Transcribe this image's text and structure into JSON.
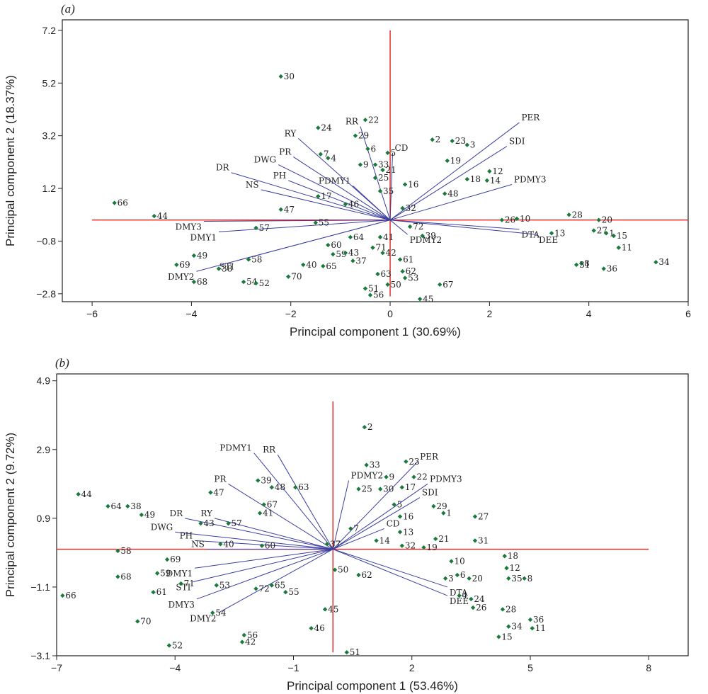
{
  "chart_data": [
    {
      "type": "scatter",
      "panel_label": "(a)",
      "xlabel": "Principal component 1 (30.69%)",
      "ylabel": "Principal component 2 (18.37%)",
      "xlim": [
        -6.6,
        6.0
      ],
      "ylim": [
        -3.1,
        7.6
      ],
      "xticks": [
        -6,
        -4,
        -2,
        0,
        2,
        4,
        6
      ],
      "yticks": [
        -2.8,
        -0.8,
        1.2,
        3.2,
        5.2,
        7.2
      ],
      "reference_lines": {
        "color": "#e02020",
        "x_span": [
          -6.0,
          6.0
        ],
        "y_span": [
          -2.9,
          7.2
        ]
      },
      "marker_color": "#1a7a3a",
      "vector_color": "#3a3fa0",
      "points": [
        {
          "label": "66",
          "x": -5.55,
          "y": 0.65
        },
        {
          "label": "44",
          "x": -4.75,
          "y": 0.15
        },
        {
          "label": "69",
          "x": -4.3,
          "y": -1.7
        },
        {
          "label": "49",
          "x": -3.95,
          "y": -1.35
        },
        {
          "label": "68",
          "x": -3.95,
          "y": -2.35
        },
        {
          "label": "38",
          "x": -3.45,
          "y": -1.85
        },
        {
          "label": "54",
          "x": -2.95,
          "y": -2.35
        },
        {
          "label": "52",
          "x": -2.7,
          "y": -2.4
        },
        {
          "label": "58",
          "x": -2.85,
          "y": -1.5
        },
        {
          "label": "57",
          "x": -2.7,
          "y": -0.3
        },
        {
          "label": "47",
          "x": -2.2,
          "y": 0.4
        },
        {
          "label": "30",
          "x": -2.2,
          "y": 5.45
        },
        {
          "label": "70",
          "x": -2.05,
          "y": -2.15
        },
        {
          "label": "40",
          "x": -1.75,
          "y": -1.7
        },
        {
          "label": "65",
          "x": -1.35,
          "y": -1.75
        },
        {
          "label": "59",
          "x": -1.15,
          "y": -1.3
        },
        {
          "label": "60",
          "x": -1.25,
          "y": -0.95
        },
        {
          "label": "43",
          "x": -0.9,
          "y": -1.25
        },
        {
          "label": "37",
          "x": -0.75,
          "y": -1.55
        },
        {
          "label": "55",
          "x": -1.5,
          "y": -0.1
        },
        {
          "label": "64",
          "x": -0.8,
          "y": -0.65
        },
        {
          "label": "17",
          "x": -1.45,
          "y": 0.9
        },
        {
          "label": "46",
          "x": -0.9,
          "y": 0.6
        },
        {
          "label": "24",
          "x": -1.45,
          "y": 3.5
        },
        {
          "label": "7",
          "x": -1.4,
          "y": 2.5
        },
        {
          "label": "4",
          "x": -1.25,
          "y": 2.35
        },
        {
          "label": "22",
          "x": -0.5,
          "y": 3.8
        },
        {
          "label": "29",
          "x": -0.7,
          "y": 3.2
        },
        {
          "label": "6",
          "x": -0.45,
          "y": 2.7
        },
        {
          "label": "9",
          "x": -0.6,
          "y": 2.1
        },
        {
          "label": "5",
          "x": -0.05,
          "y": 2.55
        },
        {
          "label": "33",
          "x": -0.3,
          "y": 2.1
        },
        {
          "label": "21",
          "x": -0.15,
          "y": 1.9
        },
        {
          "label": "25",
          "x": -0.3,
          "y": 1.6
        },
        {
          "label": "35",
          "x": -0.2,
          "y": 1.1
        },
        {
          "label": "71",
          "x": -0.35,
          "y": -1.05
        },
        {
          "label": "41",
          "x": -0.2,
          "y": -0.65
        },
        {
          "label": "42",
          "x": -0.15,
          "y": -1.25
        },
        {
          "label": "63",
          "x": -0.25,
          "y": -2.05
        },
        {
          "label": "51",
          "x": -0.5,
          "y": -2.6
        },
        {
          "label": "56",
          "x": -0.4,
          "y": -2.85
        },
        {
          "label": "50",
          "x": -0.05,
          "y": -2.45
        },
        {
          "label": "61",
          "x": 0.2,
          "y": -1.5
        },
        {
          "label": "62",
          "x": 0.25,
          "y": -1.95
        },
        {
          "label": "53",
          "x": 0.3,
          "y": -2.2
        },
        {
          "label": "45",
          "x": 0.6,
          "y": -3.0
        },
        {
          "label": "67",
          "x": 1.0,
          "y": -2.45
        },
        {
          "label": "39",
          "x": 0.65,
          "y": -0.6
        },
        {
          "label": "72",
          "x": 0.4,
          "y": -0.25
        },
        {
          "label": "32",
          "x": 0.25,
          "y": 0.45
        },
        {
          "label": "16",
          "x": 0.3,
          "y": 1.35
        },
        {
          "label": "2",
          "x": 0.85,
          "y": 3.05
        },
        {
          "label": "23",
          "x": 1.25,
          "y": 3.0
        },
        {
          "label": "3",
          "x": 1.55,
          "y": 2.85
        },
        {
          "label": "19",
          "x": 1.15,
          "y": 2.25
        },
        {
          "label": "48",
          "x": 1.1,
          "y": 1.0
        },
        {
          "label": "18",
          "x": 1.55,
          "y": 1.55
        },
        {
          "label": "14",
          "x": 1.95,
          "y": 1.5
        },
        {
          "label": "12",
          "x": 2.0,
          "y": 1.85
        },
        {
          "label": "26",
          "x": 2.25,
          "y": 0.0
        },
        {
          "label": "10",
          "x": 2.55,
          "y": 0.05
        },
        {
          "label": "13",
          "x": 3.25,
          "y": -0.5
        },
        {
          "label": "28",
          "x": 3.6,
          "y": 0.2
        },
        {
          "label": "20",
          "x": 4.2,
          "y": 0.0
        },
        {
          "label": "27",
          "x": 4.1,
          "y": -0.4
        },
        {
          "label": "1",
          "x": 4.35,
          "y": -0.5
        },
        {
          "label": "15",
          "x": 4.5,
          "y": -0.6
        },
        {
          "label": "11",
          "x": 4.6,
          "y": -1.05
        },
        {
          "label": "8",
          "x": 3.85,
          "y": -1.65
        },
        {
          "label": "31",
          "x": 3.75,
          "y": -1.7
        },
        {
          "label": "36",
          "x": 4.3,
          "y": -1.85
        },
        {
          "label": "34",
          "x": 5.35,
          "y": -1.6
        }
      ],
      "vectors": [
        {
          "label": "PER",
          "x": 2.6,
          "y": 3.7
        },
        {
          "label": "SDI",
          "x": 2.35,
          "y": 2.8
        },
        {
          "label": "PDMY3",
          "x": 2.45,
          "y": 1.35
        },
        {
          "label": "CD",
          "x": 0.05,
          "y": 2.55
        },
        {
          "label": "RR",
          "x": -0.6,
          "y": 3.55
        },
        {
          "label": "RY",
          "x": -1.85,
          "y": 3.1
        },
        {
          "label": "PR",
          "x": -1.95,
          "y": 2.4
        },
        {
          "label": "DWG",
          "x": -2.25,
          "y": 2.1
        },
        {
          "label": "DR",
          "x": -3.2,
          "y": 1.8
        },
        {
          "label": "PH",
          "x": -2.05,
          "y": 1.5
        },
        {
          "label": "NS",
          "x": -2.6,
          "y": 1.15
        },
        {
          "label": "PDMY1",
          "x": -0.75,
          "y": 1.3
        },
        {
          "label": "DMY3",
          "x": -3.75,
          "y": -0.05
        },
        {
          "label": "DMY1",
          "x": -3.45,
          "y": -0.45
        },
        {
          "label": "STI",
          "x": -3.1,
          "y": -1.55
        },
        {
          "label": "DMY2",
          "x": -3.9,
          "y": -1.95
        },
        {
          "label": "PDMY2",
          "x": 0.35,
          "y": -0.55
        },
        {
          "label": "DTA",
          "x": 2.6,
          "y": -0.35
        },
        {
          "label": "DEE",
          "x": 2.95,
          "y": -0.55
        }
      ]
    },
    {
      "type": "scatter",
      "panel_label": "(b)",
      "xlabel": "Principal component 1 (53.46%)",
      "ylabel": "Principal component 2 (9.72%)",
      "xlim": [
        -7.0,
        9.0
      ],
      "ylim": [
        -3.1,
        5.1
      ],
      "xticks": [
        -7,
        -4,
        -1,
        2,
        5,
        8
      ],
      "yticks": [
        -3.1,
        -1.1,
        0.9,
        2.9,
        4.9
      ],
      "reference_lines": {
        "color": "#e02020",
        "x_span": [
          -7.0,
          8.0
        ],
        "y_span": [
          -3.0,
          4.3
        ]
      },
      "marker_color": "#1a7a3a",
      "vector_color": "#3a3fa0",
      "points": [
        {
          "label": "2",
          "x": 0.8,
          "y": 3.55
        },
        {
          "label": "23",
          "x": 1.85,
          "y": 2.55
        },
        {
          "label": "33",
          "x": 0.85,
          "y": 2.45
        },
        {
          "label": "9",
          "x": 1.35,
          "y": 2.1
        },
        {
          "label": "22",
          "x": 2.05,
          "y": 2.1
        },
        {
          "label": "25",
          "x": 0.65,
          "y": 1.75
        },
        {
          "label": "30",
          "x": 1.2,
          "y": 1.75
        },
        {
          "label": "17",
          "x": 1.75,
          "y": 1.8
        },
        {
          "label": "5",
          "x": 1.55,
          "y": 1.3
        },
        {
          "label": "16",
          "x": 1.7,
          "y": 0.95
        },
        {
          "label": "29",
          "x": 2.55,
          "y": 1.25
        },
        {
          "label": "1",
          "x": 2.8,
          "y": 1.05
        },
        {
          "label": "27",
          "x": 3.6,
          "y": 0.95
        },
        {
          "label": "13",
          "x": 1.7,
          "y": 0.5
        },
        {
          "label": "21",
          "x": 2.6,
          "y": 0.3
        },
        {
          "label": "19",
          "x": 2.3,
          "y": 0.05
        },
        {
          "label": "32",
          "x": 1.75,
          "y": 0.1
        },
        {
          "label": "31",
          "x": 3.6,
          "y": 0.25
        },
        {
          "label": "7",
          "x": 0.45,
          "y": 0.6
        },
        {
          "label": "37",
          "x": -0.15,
          "y": 0.15
        },
        {
          "label": "50",
          "x": 0.05,
          "y": -0.6
        },
        {
          "label": "62",
          "x": 0.65,
          "y": -0.75
        },
        {
          "label": "45",
          "x": -0.2,
          "y": -1.75
        },
        {
          "label": "46",
          "x": -0.55,
          "y": -2.3
        },
        {
          "label": "51",
          "x": 0.35,
          "y": -3.0
        },
        {
          "label": "10",
          "x": 3.0,
          "y": -0.35
        },
        {
          "label": "3",
          "x": 2.85,
          "y": -0.85
        },
        {
          "label": "6",
          "x": 3.15,
          "y": -0.75
        },
        {
          "label": "20",
          "x": 3.45,
          "y": -0.85
        },
        {
          "label": "18",
          "x": 4.35,
          "y": -0.2
        },
        {
          "label": "12",
          "x": 4.4,
          "y": -0.55
        },
        {
          "label": "35",
          "x": 4.45,
          "y": -0.85
        },
        {
          "label": "8",
          "x": 4.85,
          "y": -0.85
        },
        {
          "label": "4",
          "x": 3.2,
          "y": -1.35
        },
        {
          "label": "24",
          "x": 3.5,
          "y": -1.45
        },
        {
          "label": "26",
          "x": 3.55,
          "y": -1.7
        },
        {
          "label": "28",
          "x": 4.3,
          "y": -1.75
        },
        {
          "label": "34",
          "x": 4.45,
          "y": -2.25
        },
        {
          "label": "36",
          "x": 5.0,
          "y": -2.05
        },
        {
          "label": "11",
          "x": 5.05,
          "y": -2.3
        },
        {
          "label": "15",
          "x": 4.2,
          "y": -2.55
        },
        {
          "label": "44",
          "x": -6.45,
          "y": 1.6
        },
        {
          "label": "64",
          "x": -5.7,
          "y": 1.25
        },
        {
          "label": "38",
          "x": -5.2,
          "y": 1.25
        },
        {
          "label": "49",
          "x": -4.85,
          "y": 1.0
        },
        {
          "label": "58",
          "x": -5.45,
          "y": -0.05
        },
        {
          "label": "69",
          "x": -4.2,
          "y": -0.3
        },
        {
          "label": "59",
          "x": -4.45,
          "y": -0.7
        },
        {
          "label": "71",
          "x": -3.85,
          "y": -1.0
        },
        {
          "label": "68",
          "x": -5.45,
          "y": -0.8
        },
        {
          "label": "61",
          "x": -4.55,
          "y": -1.25
        },
        {
          "label": "70",
          "x": -4.95,
          "y": -2.1
        },
        {
          "label": "66",
          "x": -6.85,
          "y": -1.35
        },
        {
          "label": "52",
          "x": -4.15,
          "y": -2.8
        },
        {
          "label": "56",
          "x": -2.25,
          "y": -2.5
        },
        {
          "label": "42",
          "x": -2.3,
          "y": -2.7
        },
        {
          "label": "54",
          "x": -3.05,
          "y": -1.85
        },
        {
          "label": "53",
          "x": -2.95,
          "y": -1.05
        },
        {
          "label": "47",
          "x": -3.1,
          "y": 1.65
        },
        {
          "label": "43",
          "x": -3.35,
          "y": 0.75
        },
        {
          "label": "57",
          "x": -2.65,
          "y": 0.75
        },
        {
          "label": "40",
          "x": -2.85,
          "y": 0.15
        },
        {
          "label": "60",
          "x": -1.8,
          "y": 0.1
        },
        {
          "label": "39",
          "x": -1.9,
          "y": 2.0
        },
        {
          "label": "48",
          "x": -1.55,
          "y": 1.8
        },
        {
          "label": "67",
          "x": -1.75,
          "y": 1.3
        },
        {
          "label": "41",
          "x": -1.85,
          "y": 1.05
        },
        {
          "label": "63",
          "x": -0.95,
          "y": 1.8
        },
        {
          "label": "65",
          "x": -1.55,
          "y": -1.05
        },
        {
          "label": "72",
          "x": -1.95,
          "y": -1.15
        },
        {
          "label": "55",
          "x": -1.2,
          "y": -1.25
        },
        {
          "label": "14",
          "x": 1.1,
          "y": 0.25
        }
      ],
      "vectors": [
        {
          "label": "PDMY1",
          "x": -2.0,
          "y": 2.8
        },
        {
          "label": "RR",
          "x": -1.4,
          "y": 2.75
        },
        {
          "label": "PR",
          "x": -2.65,
          "y": 1.9
        },
        {
          "label": "RY",
          "x": -3.0,
          "y": 0.9
        },
        {
          "label": "DR",
          "x": -3.75,
          "y": 0.9
        },
        {
          "label": "DWG",
          "x": -4.0,
          "y": 0.5
        },
        {
          "label": "PH",
          "x": -3.5,
          "y": 0.25
        },
        {
          "label": "NS",
          "x": -3.2,
          "y": 0.0
        },
        {
          "label": "DMY1",
          "x": -3.5,
          "y": -0.55
        },
        {
          "label": "STI",
          "x": -3.55,
          "y": -0.95
        },
        {
          "label": "DMY3",
          "x": -3.45,
          "y": -1.45
        },
        {
          "label": "DMY2",
          "x": -2.9,
          "y": -1.85
        },
        {
          "label": "PDMY2",
          "x": 0.4,
          "y": 2.0
        },
        {
          "label": "PER",
          "x": 2.15,
          "y": 2.55
        },
        {
          "label": "PDMY3",
          "x": 2.4,
          "y": 1.9
        },
        {
          "label": "SDI",
          "x": 2.2,
          "y": 1.5
        },
        {
          "label": "CD",
          "x": 1.3,
          "y": 0.6
        },
        {
          "label": "DTA",
          "x": 2.9,
          "y": -1.1
        },
        {
          "label": "DEE",
          "x": 2.9,
          "y": -1.35
        }
      ]
    }
  ]
}
